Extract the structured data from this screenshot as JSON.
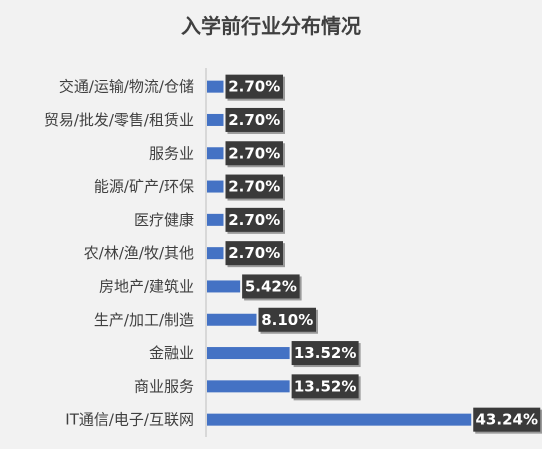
{
  "chart_data": {
    "type": "bar",
    "orientation": "horizontal",
    "title": "入学前行业分布情况",
    "categories": [
      "交通/运输/物流/仓储",
      "贸易/批发/零售/租赁业",
      "服务业",
      "能源/矿产/环保",
      "医疗健康",
      "农/林/渔/牧/其他",
      "房地产/建筑业",
      "生产/加工/制造",
      "金融业",
      "商业服务",
      "IT通信/电子/互联网"
    ],
    "values": [
      2.7,
      2.7,
      2.7,
      2.7,
      2.7,
      2.7,
      5.42,
      8.1,
      13.52,
      13.52,
      43.24
    ],
    "value_labels": [
      "2.70%",
      "2.70%",
      "2.70%",
      "2.70%",
      "2.70%",
      "2.70%",
      "5.42%",
      "8.10%",
      "13.52%",
      "13.52%",
      "43.24%"
    ],
    "unit": "%",
    "xlim": [
      0,
      45
    ],
    "grid": false,
    "legend": "none",
    "colors": {
      "bar": "#4472c4",
      "label_bg": "#3a3a3a",
      "label_text": "#ffffff",
      "axis": "#bfbfbf",
      "background": "#f2f2f2",
      "text": "#404040"
    }
  }
}
